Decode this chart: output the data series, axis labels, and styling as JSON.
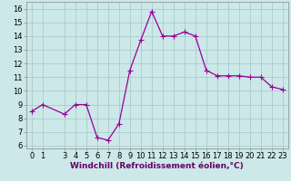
{
  "x": [
    0,
    1,
    3,
    4,
    5,
    6,
    7,
    8,
    9,
    10,
    11,
    12,
    13,
    14,
    15,
    16,
    17,
    18,
    19,
    20,
    21,
    22,
    23
  ],
  "y": [
    8.5,
    9.0,
    8.3,
    9.0,
    9.0,
    6.6,
    6.4,
    7.6,
    11.5,
    13.7,
    15.8,
    14.0,
    14.0,
    14.3,
    14.0,
    11.5,
    11.1,
    11.1,
    11.1,
    11.0,
    11.0,
    10.3,
    10.1
  ],
  "line_color": "#990099",
  "marker": "+",
  "marker_size": 4,
  "marker_linewidth": 0.8,
  "line_width": 0.9,
  "bg_color": "#cce8e8",
  "grid_color": "#aacccc",
  "xlabel": "Windchill (Refroidissement éolien,°C)",
  "xlabel_fontsize": 6.5,
  "ylabel_ticks": [
    6,
    7,
    8,
    9,
    10,
    11,
    12,
    13,
    14,
    15,
    16
  ],
  "xticks": [
    0,
    1,
    3,
    4,
    5,
    6,
    7,
    8,
    9,
    10,
    11,
    12,
    13,
    14,
    15,
    16,
    17,
    18,
    19,
    20,
    21,
    22,
    23
  ],
  "xlim": [
    -0.5,
    23.5
  ],
  "ylim": [
    5.8,
    16.5
  ],
  "tick_fontsize": 6.0,
  "xlabel_color": "#660066",
  "line_color_spine": "#888888"
}
